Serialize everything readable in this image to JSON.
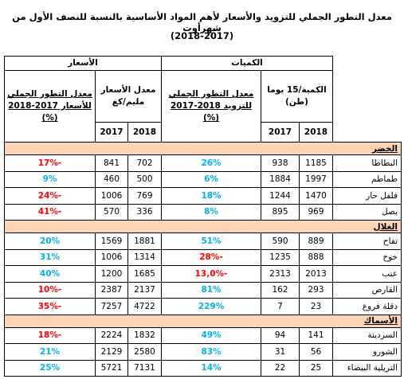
{
  "title": "معدل التطور الجملي للتزويد والأسعار لأهم المواد الأساسية بالنسبة للنصف الأول من شهرأوت",
  "subtitle": "(2018-2017)",
  "table": {
    "group_headers": [
      "الكميات",
      "الأسعار"
    ],
    "quantity_header": [
      "الكمية/15 يوما",
      "(طن)"
    ],
    "quantity_change_header": [
      "معدل التطور الجملي",
      "للتزويد 2018-2017",
      "(%)"
    ],
    "price_header": [
      "معدل الأسعار",
      "مليم/كغ"
    ],
    "price_change_header": [
      "معدل التطور الجملي",
      "للأسعار 2017-2018",
      "(%)"
    ],
    "years": [
      "2018",
      "2017",
      "2018",
      "2017"
    ],
    "sections": [
      {
        "name": "الخضر",
        "rows": [
          [
            "البطاطا",
            "1185",
            "938",
            "26%",
            "702",
            "841",
            "-17%"
          ],
          [
            "طماطم",
            "1997",
            "1884",
            "6%",
            "500",
            "460",
            "9%"
          ],
          [
            "فلفل حار",
            "1470",
            "1244",
            "18%",
            "769",
            "1006",
            "-24%"
          ],
          [
            "بصل",
            "969",
            "895",
            "8%",
            "336",
            "570",
            "-41%"
          ]
        ]
      },
      {
        "name": "الغلال",
        "rows": [
          [
            "تفاح",
            "889",
            "590",
            "51%",
            "1881",
            "1569",
            "20%"
          ],
          [
            "خوخ",
            "888",
            "1235",
            "-28%",
            "1314",
            "1006",
            "31%"
          ],
          [
            "عنب",
            "2013",
            "2313",
            "-13,0%",
            "1685",
            "1200",
            "40%"
          ],
          [
            "القارص",
            "293",
            "162",
            "81%",
            "2137",
            "2387",
            "-10%"
          ],
          [
            "دقلة فروع",
            "23",
            "7",
            "229%",
            "4722",
            "7257",
            "-35%"
          ]
        ]
      },
      {
        "name": "الأسماك",
        "rows": [
          [
            "السردينة",
            "141",
            "94",
            "49%",
            "1832",
            "2224",
            "-18%"
          ],
          [
            "الشورو",
            "56",
            "31",
            "83%",
            "2580",
            "2129",
            "21%"
          ],
          [
            "التريلية البيضاء",
            "25",
            "22",
            "14%",
            "7131",
            "5721",
            "25%"
          ]
        ]
      }
    ]
  }
}
